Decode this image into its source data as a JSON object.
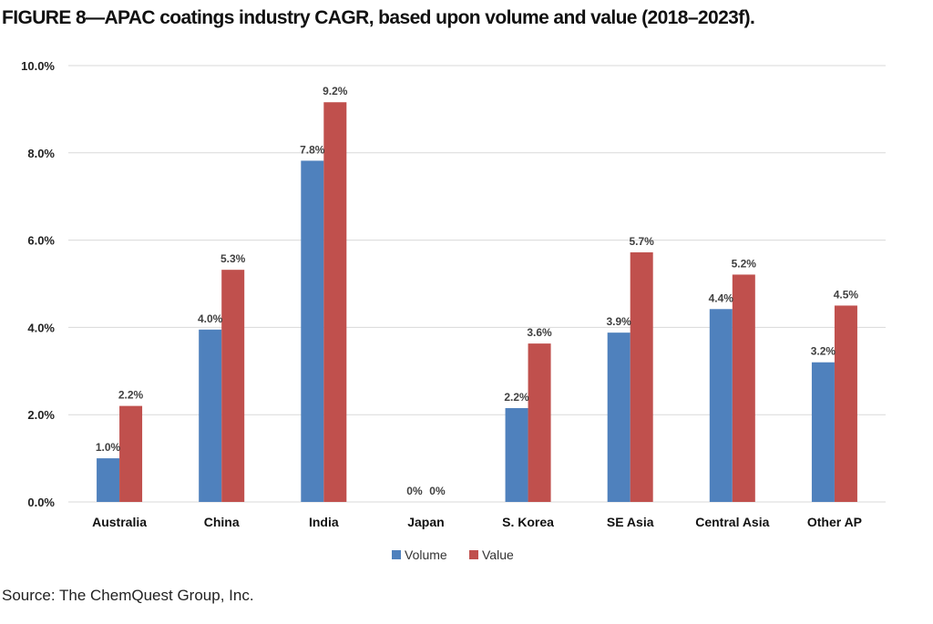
{
  "figure": {
    "title": "FIGURE 8—APAC coatings industry CAGR, based upon volume and value (2018–2023f).",
    "source": "Source: The ChemQuest Group, Inc."
  },
  "chart_data": {
    "type": "bar",
    "categories": [
      "Australia",
      "China",
      "India",
      "Japan",
      "S. Korea",
      "SE Asia",
      "Central Asia",
      "Other AP"
    ],
    "series": [
      {
        "name": "Volume",
        "color": "#4f81bd",
        "values": [
          1.0,
          3.95,
          7.82,
          0,
          2.15,
          3.88,
          4.42,
          3.2
        ],
        "labels": [
          "1.0%",
          "4.0%",
          "7.8%",
          "0%",
          "2.2%",
          "3.9%",
          "4.4%",
          "3.2%"
        ]
      },
      {
        "name": "Value",
        "color": "#c0504d",
        "values": [
          2.2,
          5.32,
          9.16,
          0,
          3.63,
          5.72,
          5.21,
          4.5
        ],
        "labels": [
          "2.2%",
          "5.3%",
          "9.2%",
          "0%",
          "3.6%",
          "5.7%",
          "5.2%",
          "4.5%"
        ]
      }
    ],
    "yticks": [
      0,
      2,
      4,
      6,
      8,
      10
    ],
    "ytick_labels": [
      "0.0%",
      "2.0%",
      "4.0%",
      "6.0%",
      "8.0%",
      "10.0%"
    ],
    "ylim": [
      0,
      10
    ],
    "grid": true,
    "legend_position": "bottom-center",
    "gridline_color": "#d9d9d9"
  }
}
